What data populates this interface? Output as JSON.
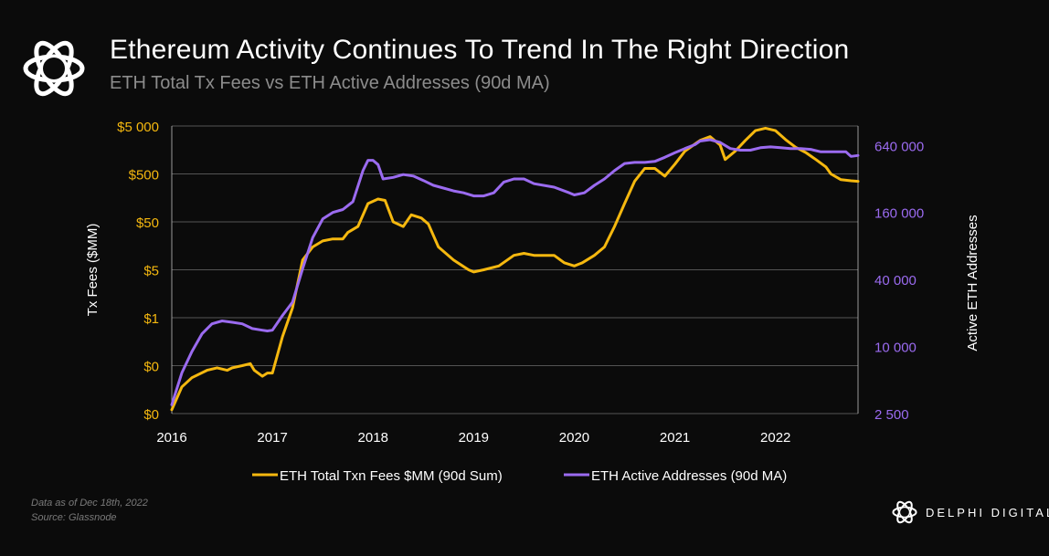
{
  "header": {
    "title": "Ethereum Activity Continues To Trend In The Right Direction",
    "subtitle": "ETH Total Tx Fees vs ETH Active Addresses (90d MA)"
  },
  "footer": {
    "note_line1": "Data as of Dec 18th, 2022",
    "note_line2": "Source: Glassnode",
    "brand": "DELPHI DIGITAL"
  },
  "icons": {
    "logo": "delphi-knot-icon"
  },
  "colors": {
    "fees": "#f5b80f",
    "addresses": "#9b6bf0",
    "background": "#0b0b0b",
    "grid": "#bdbdbd"
  },
  "chart_data": {
    "type": "line",
    "xlabel": "",
    "ylabel_left": "Tx Fees ($MM)",
    "ylabel_right": "Active ETH Addresses",
    "x_ticks": [
      "2016",
      "2017",
      "2018",
      "2019",
      "2020",
      "2021",
      "2022"
    ],
    "xlim": [
      2016.0,
      2022.82
    ],
    "y_left_scale": "log",
    "y_left_ticks": [
      {
        "label": "$5 000",
        "value": 5000
      },
      {
        "label": "$500",
        "value": 500
      },
      {
        "label": "$50",
        "value": 50
      },
      {
        "label": "$5",
        "value": 5
      },
      {
        "label": "$1",
        "value": 0.5
      },
      {
        "label": "$0",
        "value": 0.05
      },
      {
        "label": "$0",
        "value": 0.005
      }
    ],
    "ylim_left": [
      0.005,
      5000
    ],
    "y_right_scale": "log",
    "y_right_ticks": [
      {
        "label": "640 000",
        "value": 640000
      },
      {
        "label": "160 000",
        "value": 160000
      },
      {
        "label": "40 000",
        "value": 40000
      },
      {
        "label": "10 000",
        "value": 10000
      },
      {
        "label": "2 500",
        "value": 2500
      }
    ],
    "ylim_right": [
      2500,
      956000
    ],
    "grid": true,
    "legend_position": "bottom",
    "series": [
      {
        "name": "ETH Total Txn Fees $MM (90d Sum)",
        "axis": "left",
        "x": [
          2016.0,
          2016.1,
          2016.2,
          2016.35,
          2016.45,
          2016.55,
          2016.6,
          2016.7,
          2016.78,
          2016.82,
          2016.9,
          2016.95,
          2017.0,
          2017.1,
          2017.2,
          2017.3,
          2017.4,
          2017.5,
          2017.6,
          2017.7,
          2017.75,
          2017.85,
          2017.95,
          2018.05,
          2018.12,
          2018.2,
          2018.3,
          2018.38,
          2018.48,
          2018.55,
          2018.65,
          2018.8,
          2018.95,
          2019.0,
          2019.1,
          2019.25,
          2019.4,
          2019.5,
          2019.6,
          2019.8,
          2019.9,
          2020.0,
          2020.08,
          2020.2,
          2020.3,
          2020.4,
          2020.5,
          2020.6,
          2020.7,
          2020.8,
          2020.9,
          2021.0,
          2021.1,
          2021.25,
          2021.35,
          2021.45,
          2021.5,
          2021.6,
          2021.7,
          2021.8,
          2021.9,
          2022.0,
          2022.1,
          2022.2,
          2022.3,
          2022.4,
          2022.5,
          2022.55,
          2022.65,
          2022.75,
          2022.82
        ],
        "values": [
          0.006,
          0.018,
          0.028,
          0.04,
          0.045,
          0.04,
          0.045,
          0.05,
          0.055,
          0.04,
          0.03,
          0.035,
          0.035,
          0.2,
          0.8,
          8,
          15,
          20,
          22,
          22,
          30,
          40,
          120,
          150,
          140,
          50,
          40,
          70,
          60,
          45,
          15,
          8,
          5,
          4.5,
          5,
          6,
          10,
          11,
          10,
          10,
          7,
          6,
          7,
          10,
          15,
          40,
          120,
          350,
          650,
          650,
          450,
          800,
          1500,
          2500,
          3000,
          2000,
          1000,
          1500,
          2500,
          4000,
          4500,
          4000,
          2600,
          1800,
          1400,
          1000,
          700,
          500,
          380,
          360,
          350
        ]
      },
      {
        "name": "ETH Active Addresses (90d MA)",
        "axis": "right",
        "x": [
          2016.0,
          2016.1,
          2016.2,
          2016.3,
          2016.4,
          2016.5,
          2016.6,
          2016.7,
          2016.8,
          2016.9,
          2016.95,
          2017.0,
          2017.1,
          2017.2,
          2017.3,
          2017.4,
          2017.5,
          2017.6,
          2017.7,
          2017.8,
          2017.9,
          2017.95,
          2018.0,
          2018.05,
          2018.1,
          2018.2,
          2018.3,
          2018.4,
          2018.5,
          2018.6,
          2018.7,
          2018.8,
          2018.9,
          2019.0,
          2019.1,
          2019.2,
          2019.3,
          2019.4,
          2019.5,
          2019.6,
          2019.8,
          2019.95,
          2020.0,
          2020.1,
          2020.2,
          2020.3,
          2020.4,
          2020.5,
          2020.6,
          2020.7,
          2020.8,
          2020.9,
          2021.0,
          2021.1,
          2021.2,
          2021.25,
          2021.35,
          2021.45,
          2021.55,
          2021.65,
          2021.75,
          2021.85,
          2021.95,
          2022.05,
          2022.15,
          2022.25,
          2022.35,
          2022.45,
          2022.55,
          2022.6,
          2022.7,
          2022.75,
          2022.82
        ],
        "values": [
          3000,
          5800,
          9000,
          13000,
          16000,
          17000,
          16500,
          16000,
          14500,
          14000,
          13800,
          14000,
          19000,
          25000,
          50000,
          95000,
          140000,
          160000,
          170000,
          200000,
          380000,
          470000,
          470000,
          430000,
          320000,
          330000,
          350000,
          340000,
          310000,
          280000,
          265000,
          250000,
          240000,
          225000,
          225000,
          240000,
          300000,
          320000,
          320000,
          290000,
          270000,
          240000,
          230000,
          240000,
          280000,
          320000,
          380000,
          440000,
          450000,
          450000,
          460000,
          500000,
          550000,
          600000,
          650000,
          700000,
          720000,
          680000,
          600000,
          580000,
          580000,
          610000,
          620000,
          610000,
          600000,
          600000,
          590000,
          560000,
          560000,
          560000,
          560000,
          510000,
          520000
        ]
      }
    ]
  }
}
